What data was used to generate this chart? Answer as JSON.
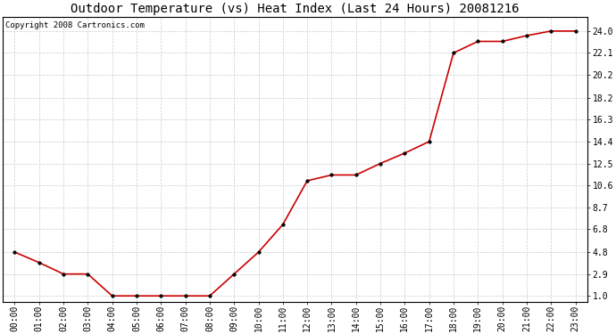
{
  "title": "Outdoor Temperature (vs) Heat Index (Last 24 Hours) 20081216",
  "copyright_text": "Copyright 2008 Cartronics.com",
  "x_labels": [
    "00:00",
    "01:00",
    "02:00",
    "03:00",
    "04:00",
    "05:00",
    "06:00",
    "07:00",
    "08:00",
    "09:00",
    "10:00",
    "11:00",
    "12:00",
    "13:00",
    "14:00",
    "15:00",
    "16:00",
    "17:00",
    "18:00",
    "19:00",
    "20:00",
    "21:00",
    "22:00",
    "23:00"
  ],
  "y_values": [
    4.8,
    3.9,
    2.9,
    2.9,
    1.0,
    1.0,
    1.0,
    1.0,
    1.0,
    2.9,
    4.8,
    7.2,
    11.0,
    11.5,
    11.5,
    12.5,
    13.4,
    14.4,
    22.1,
    23.1,
    23.1,
    23.6,
    24.0,
    24.0
  ],
  "line_color": "#cc0000",
  "marker_style": "o",
  "marker_size": 2.5,
  "marker_color": "#000000",
  "marker_edge_color": "#000000",
  "background_color": "#ffffff",
  "grid_color": "#cccccc",
  "y_ticks": [
    1.0,
    2.9,
    4.8,
    6.8,
    8.7,
    10.6,
    12.5,
    14.4,
    16.3,
    18.2,
    20.2,
    22.1,
    24.0
  ],
  "y_min": 0.5,
  "y_max": 25.2,
  "title_fontsize": 10,
  "tick_fontsize": 7,
  "copyright_fontsize": 6.5
}
